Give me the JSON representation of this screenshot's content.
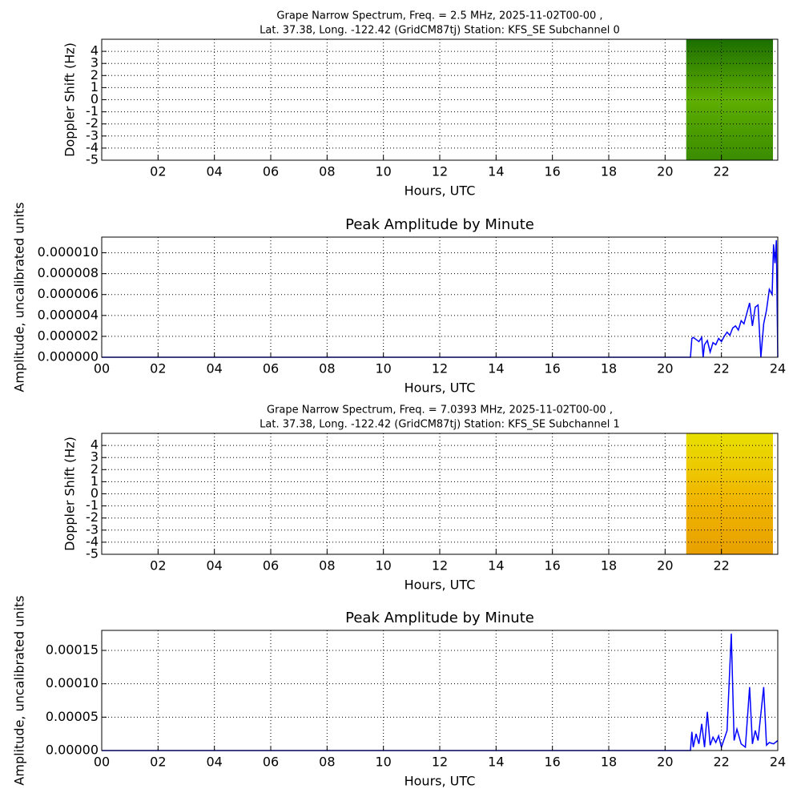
{
  "chart_data": [
    {
      "type": "spectrogram",
      "title": [
        "Grape Narrow Spectrum, Freq. = 2.5 MHz, 2025-11-02T00-00 ,",
        "Lat.  37.38, Long. -122.42 (GridCM87tj) Station: KFS_SE Subchannel 0"
      ],
      "xlabel": "Hours, UTC",
      "ylabel": "Doppler Shift (Hz)",
      "x": [
        20.75,
        23.83
      ],
      "colors": [
        "#1c6e00",
        "#5fae00",
        "#3a8c00"
      ],
      "xlim": [
        0,
        24
      ],
      "ylim": [
        -5,
        5
      ],
      "xticks": [
        {
          "value": 2,
          "label": "02"
        },
        {
          "value": 4,
          "label": "04"
        },
        {
          "value": 6,
          "label": "06"
        },
        {
          "value": 8,
          "label": "08"
        },
        10,
        12,
        14,
        16,
        18,
        20,
        22
      ],
      "yticks": [
        -5,
        -4,
        -3,
        -2,
        -1,
        0,
        1,
        2,
        3,
        4
      ],
      "grid": true
    },
    {
      "type": "line",
      "title": "Peak Amplitude by Minute",
      "xlabel": "Hours, UTC",
      "ylabel": "Amplitude, uncalibrated units",
      "color": "#0000ff",
      "x": [
        0,
        20.9,
        20.95,
        21.0,
        21.1,
        21.2,
        21.3,
        21.35,
        21.4,
        21.5,
        21.6,
        21.7,
        21.8,
        21.9,
        22.0,
        22.1,
        22.2,
        22.3,
        22.4,
        22.5,
        22.6,
        22.7,
        22.8,
        22.9,
        23.0,
        23.1,
        23.2,
        23.3,
        23.4,
        23.5,
        23.6,
        23.7,
        23.8,
        23.85,
        23.9,
        23.95,
        24.0
      ],
      "values": [
        0,
        0,
        1.8e-06,
        1.9e-06,
        1.7e-06,
        1.5e-06,
        1.9e-06,
        0,
        1.2e-06,
        1.6e-06,
        5e-07,
        1.4e-06,
        1.2e-06,
        1.8e-06,
        1.5e-06,
        2e-06,
        2.4e-06,
        2.1e-06,
        2.8e-06,
        3e-06,
        2.6e-06,
        3.5e-06,
        3.2e-06,
        4.2e-06,
        5.2e-06,
        3e-06,
        4.8e-06,
        5e-06,
        0,
        3.2e-06,
        4.5e-06,
        6.5e-06,
        6e-06,
        1.08e-05,
        9e-06,
        1.12e-05,
        0
      ],
      "xlim": [
        0,
        24
      ],
      "ylim": [
        0,
        1.15e-05
      ],
      "xticks": [
        {
          "value": 0,
          "label": "00"
        },
        {
          "value": 2,
          "label": "02"
        },
        {
          "value": 4,
          "label": "04"
        },
        {
          "value": 6,
          "label": "06"
        },
        {
          "value": 8,
          "label": "08"
        },
        10,
        12,
        14,
        16,
        18,
        20,
        22,
        24
      ],
      "yticks": [
        {
          "value": 0,
          "label": "0.000000"
        },
        {
          "value": 2e-06,
          "label": "0.000002"
        },
        {
          "value": 4e-06,
          "label": "0.000004"
        },
        {
          "value": 6e-06,
          "label": "0.000006"
        },
        {
          "value": 8e-06,
          "label": "0.000008"
        },
        {
          "value": 1e-05,
          "label": "0.000010"
        }
      ],
      "grid": true
    },
    {
      "type": "spectrogram",
      "title": [
        "Grape Narrow Spectrum, Freq. = 7.0393 MHz, 2025-11-02T00-00 ,",
        "Lat.  37.38, Long. -122.42 (GridCM87tj) Station: KFS_SE Subchannel 1"
      ],
      "xlabel": "Hours, UTC",
      "ylabel": "Doppler Shift (Hz)",
      "x": [
        20.75,
        23.83
      ],
      "colors": [
        "#e8e000",
        "#f0b800",
        "#e8a000"
      ],
      "xlim": [
        0,
        24
      ],
      "ylim": [
        -5,
        5
      ],
      "xticks": [
        {
          "value": 2,
          "label": "02"
        },
        {
          "value": 4,
          "label": "04"
        },
        {
          "value": 6,
          "label": "06"
        },
        {
          "value": 8,
          "label": "08"
        },
        10,
        12,
        14,
        16,
        18,
        20,
        22
      ],
      "yticks": [
        -5,
        -4,
        -3,
        -2,
        -1,
        0,
        1,
        2,
        3,
        4
      ],
      "grid": true
    },
    {
      "type": "line",
      "title": "Peak Amplitude by Minute",
      "xlabel": "Hours, UTC",
      "ylabel": "Amplitude, uncalibrated units",
      "color": "#0000ff",
      "x": [
        0,
        20.9,
        20.95,
        21.0,
        21.1,
        21.2,
        21.3,
        21.4,
        21.5,
        21.6,
        21.7,
        21.8,
        21.9,
        22.0,
        22.2,
        22.35,
        22.45,
        22.55,
        22.7,
        22.85,
        23.0,
        23.1,
        23.2,
        23.3,
        23.5,
        23.6,
        23.7,
        23.85,
        24.0
      ],
      "values": [
        0,
        0,
        2.8e-05,
        5e-06,
        2.5e-05,
        1e-05,
        4e-05,
        5e-06,
        5.8e-05,
        8e-06,
        2e-05,
        1.2e-05,
        2.2e-05,
        5e-06,
        3e-05,
        0.000175,
        1.5e-05,
        3.2e-05,
        1e-05,
        5e-06,
        9.5e-05,
        1e-05,
        3e-05,
        1.5e-05,
        9.5e-05,
        8e-06,
        1.2e-05,
        1e-05,
        1.5e-05
      ],
      "xlim": [
        0,
        24
      ],
      "ylim": [
        0,
        0.00018
      ],
      "xticks": [
        {
          "value": 0,
          "label": "00"
        },
        {
          "value": 2,
          "label": "02"
        },
        {
          "value": 4,
          "label": "04"
        },
        {
          "value": 6,
          "label": "06"
        },
        {
          "value": 8,
          "label": "08"
        },
        10,
        12,
        14,
        16,
        18,
        20,
        22,
        24
      ],
      "yticks": [
        {
          "value": 0,
          "label": "0.00000"
        },
        {
          "value": 5e-05,
          "label": "0.00005"
        },
        {
          "value": 0.0001,
          "label": "0.00010"
        },
        {
          "value": 0.00015,
          "label": "0.00015"
        }
      ],
      "grid": true
    }
  ]
}
